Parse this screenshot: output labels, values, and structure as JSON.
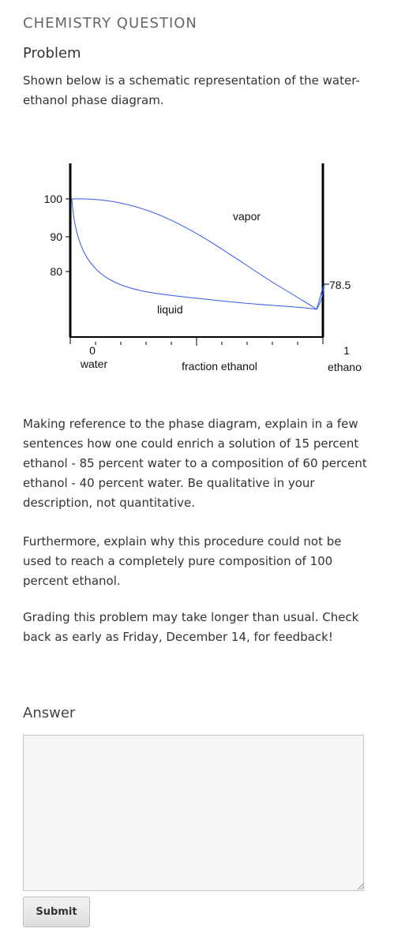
{
  "header": {
    "title": "CHEMISTRY QUESTION"
  },
  "problem": {
    "heading": "Problem",
    "intro": "Shown below is a schematic representation of the water-ethanol phase diagram.",
    "paragraphs": [
      "Making reference to the phase diagram, explain in a few sentences how one could enrich a solution of 15 percent ethanol - 85 percent water to a composition of 60 percent ethanol - 40 percent water. Be qualitative in your description, not quantitative.",
      "Furthermore, explain why this procedure could not be used to reach a completely pure composition of 100 percent ethanol.",
      "Grading this problem may take longer than usual. Check back as early as Friday, December 14, for feedback!"
    ]
  },
  "diagram": {
    "y_ticks": [
      "100",
      "90",
      "80"
    ],
    "azeotrope_label": "78.5",
    "region_vapor": "vapor",
    "region_liquid": "liquid",
    "x_left_value": "0",
    "x_left_label": "water",
    "x_right_value": "1",
    "x_right_label": "ethanol",
    "x_axis_label": "fraction ethanol",
    "curve_color": "#3355ee"
  },
  "answer": {
    "heading": "Answer",
    "value": "",
    "submit_label": "Submit"
  }
}
